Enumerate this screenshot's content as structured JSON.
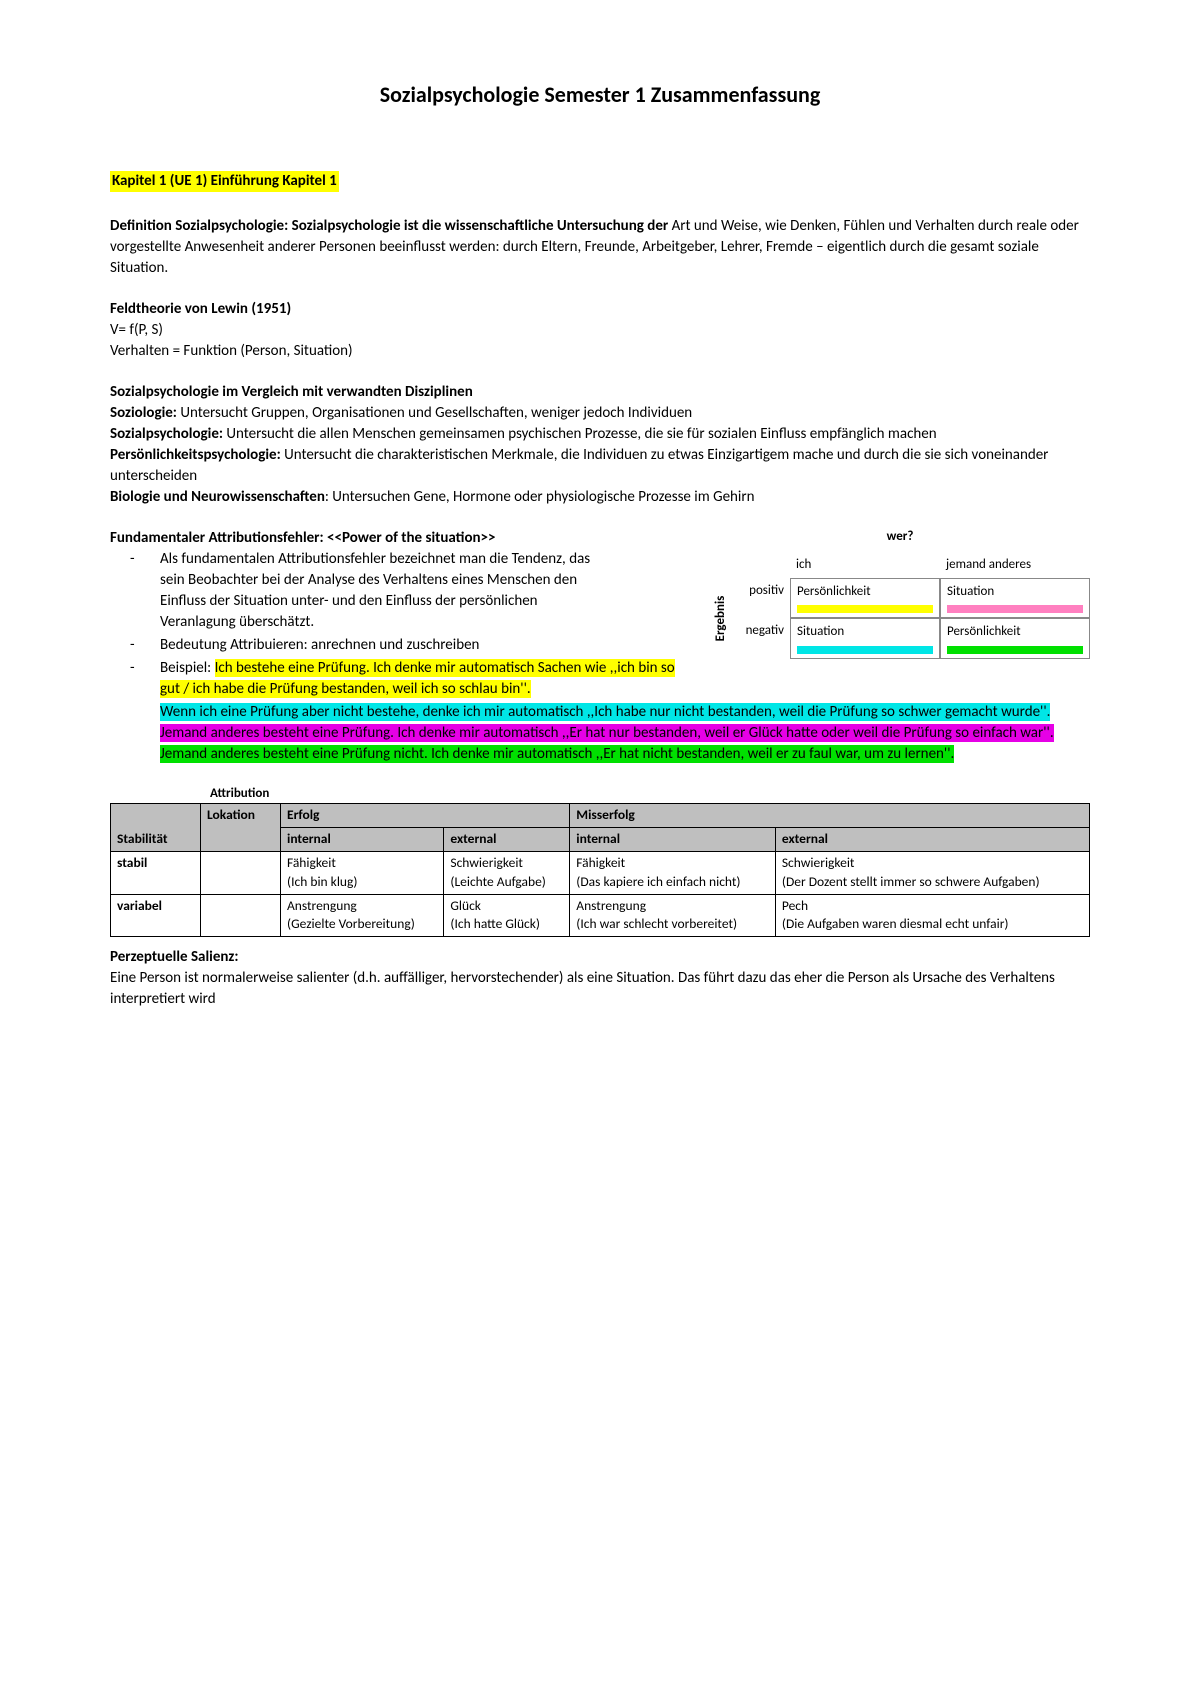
{
  "title": "Sozialpsychologie Semester 1 Zusammenfassung",
  "chapter_heading": "Kapitel 1 (UE 1) Einführung        Kapitel 1",
  "definition": {
    "lead": "Definition Sozialpsychologie: Sozialpsychologie ist die wissenschaftliche Untersuchung der ",
    "rest": "Art und Weise, wie Denken, Fühlen und Verhalten durch reale oder vorgestellte Anwesenheit anderer Personen beeinflusst werden: durch Eltern, Freunde, Arbeitgeber, Lehrer, Fremde – eigentlich durch die gesamt soziale Situation."
  },
  "lewin": {
    "heading": "Feldtheorie von Lewin (1951)",
    "formula": "V= f(P, S)",
    "expl": "Verhalten = Funktion (Person, Situation)"
  },
  "compare": {
    "heading": "Sozialpsychologie im Vergleich mit verwandten Disziplinen",
    "items": [
      {
        "label": "Soziologie:",
        "text": " Untersucht Gruppen, Organisationen und Gesellschaften, weniger jedoch Individuen"
      },
      {
        "label": "Sozialpsychologie:",
        "text": " Untersucht die allen Menschen gemeinsamen psychischen Prozesse, die sie für sozialen Einfluss empfänglich machen"
      },
      {
        "label": "Persönlichkeitspsychologie:",
        "text": " Untersucht die charakteristischen Merkmale, die Individuen zu etwas Einzigartigem mache und durch die sie sich voneinander unterscheiden"
      },
      {
        "label": "Biologie und Neurowissenschaften",
        "text": ": Untersuchen Gene, Hormone oder physiologische Prozesse im Gehirn"
      }
    ]
  },
  "fae": {
    "heading": "Fundamentaler Attributionsfehler: <<Power of the situation>>",
    "bullets": [
      "Als fundamentalen Attributionsfehler bezeichnet man die Tendenz, das sein Beobachter bei der Analyse des Verhaltens eines Menschen den Einfluss der Situation unter- und den Einfluss der persönlichen Veranlagung überschätzt.",
      "Bedeutung Attribuieren: anrechnen und zuschreiben"
    ],
    "example_lead": "Beispiel: ",
    "ex_yellow": "Ich bestehe eine Prüfung. Ich denke mir automatisch Sachen wie ,,ich bin so gut / ich habe die Prüfung bestanden, weil ich so schlau bin''.",
    "ex_cyan": "Wenn ich eine Prüfung aber nicht bestehe, denke ich mir automatisch ,,Ich habe nur nicht bestanden, weil die Prüfung so schwer gemacht wurde''.",
    "ex_magenta": "Jemand anderes besteht eine Prüfung. Ich denke mir automatisch ,,Er hat nur bestanden, weil er Glück hatte oder weil die Prüfung so einfach war''.",
    "ex_green": "Jemand anderes besteht eine Prüfung nicht. Ich denke mir automatisch ,,Er hat nicht bestanden, weil er zu faul war, um zu lernen''."
  },
  "mini": {
    "title": "wer?",
    "axis": "Ergebnis",
    "col1": "ich",
    "col2": "jemand anderes",
    "row1": "positiv",
    "row2": "negativ",
    "c11": "Persönlichkeit",
    "c12": "Situation",
    "c21": "Situation",
    "c22": "Persönlichkeit",
    "colors": {
      "c11": "#ffff00",
      "c12": "#ff80c0",
      "c21": "#00e6e6",
      "c22": "#00e000"
    }
  },
  "attr_table": {
    "caption": "Attribution",
    "head": {
      "lokation": "Lokation",
      "erfolg": "Erfolg",
      "misserfolg": "Misserfolg",
      "stabilitaet": "Stabilität",
      "internal": "internal",
      "external": "external"
    },
    "rows": [
      {
        "label": "stabil",
        "cells": [
          "Fähigkeit\n(Ich bin klug)",
          "Schwierigkeit\n(Leichte Aufgabe)",
          "Fähigkeit\n(Das kapiere ich einfach nicht)",
          "Schwierigkeit\n(Der Dozent stellt immer so schwere Aufgaben)"
        ]
      },
      {
        "label": "variabel",
        "cells": [
          "Anstrengung\n(Gezielte Vorbereitung)",
          "Glück\n(Ich hatte Glück)",
          "Anstrengung\n(Ich war schlecht vorbereitet)",
          "Pech\n(Die Aufgaben waren diesmal echt unfair)"
        ]
      }
    ]
  },
  "salienz": {
    "heading": "Perzeptuelle Salienz:",
    "text": "Eine Person ist normalerweise salienter (d.h. auffälliger, hervorstechender) als eine Situation. Das führt dazu das eher die Person als Ursache des Verhaltens interpretiert wird"
  }
}
